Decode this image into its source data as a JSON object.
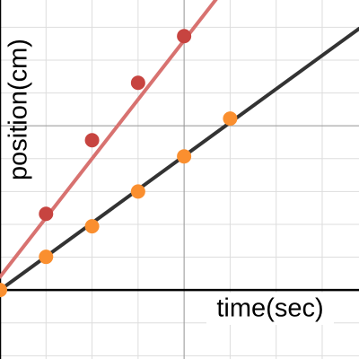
{
  "chart_data": {
    "type": "scatter",
    "xlabel": "time(sec)",
    "ylabel": "position(cm)",
    "xlim": [
      0,
      7.8
    ],
    "ylim": [
      -2.1,
      8.83
    ],
    "xticks": [
      1,
      2,
      3,
      4,
      5,
      6,
      7
    ],
    "yticks": [
      -2,
      -1,
      1,
      2,
      3,
      4,
      5,
      6,
      7,
      8
    ],
    "xticks_major": [
      4
    ],
    "yticks_major": [
      5
    ],
    "grid": true,
    "series": [
      {
        "color": "#c74440",
        "x": [
          1,
          2,
          3,
          4
        ],
        "values": [
          2.32,
          4.56,
          6.31,
          7.73
        ],
        "fit": {
          "color": "#d87270",
          "slope": 1.8,
          "intercept": 0.4
        }
      },
      {
        "color": "#fa8f2f",
        "x": [
          0,
          1,
          2,
          3,
          4,
          5
        ],
        "values": [
          0,
          1.01,
          1.94,
          3.0,
          4.07,
          5.22
        ],
        "fit": {
          "color": "#333333",
          "slope": 1.02,
          "intercept": 0
        }
      }
    ]
  }
}
